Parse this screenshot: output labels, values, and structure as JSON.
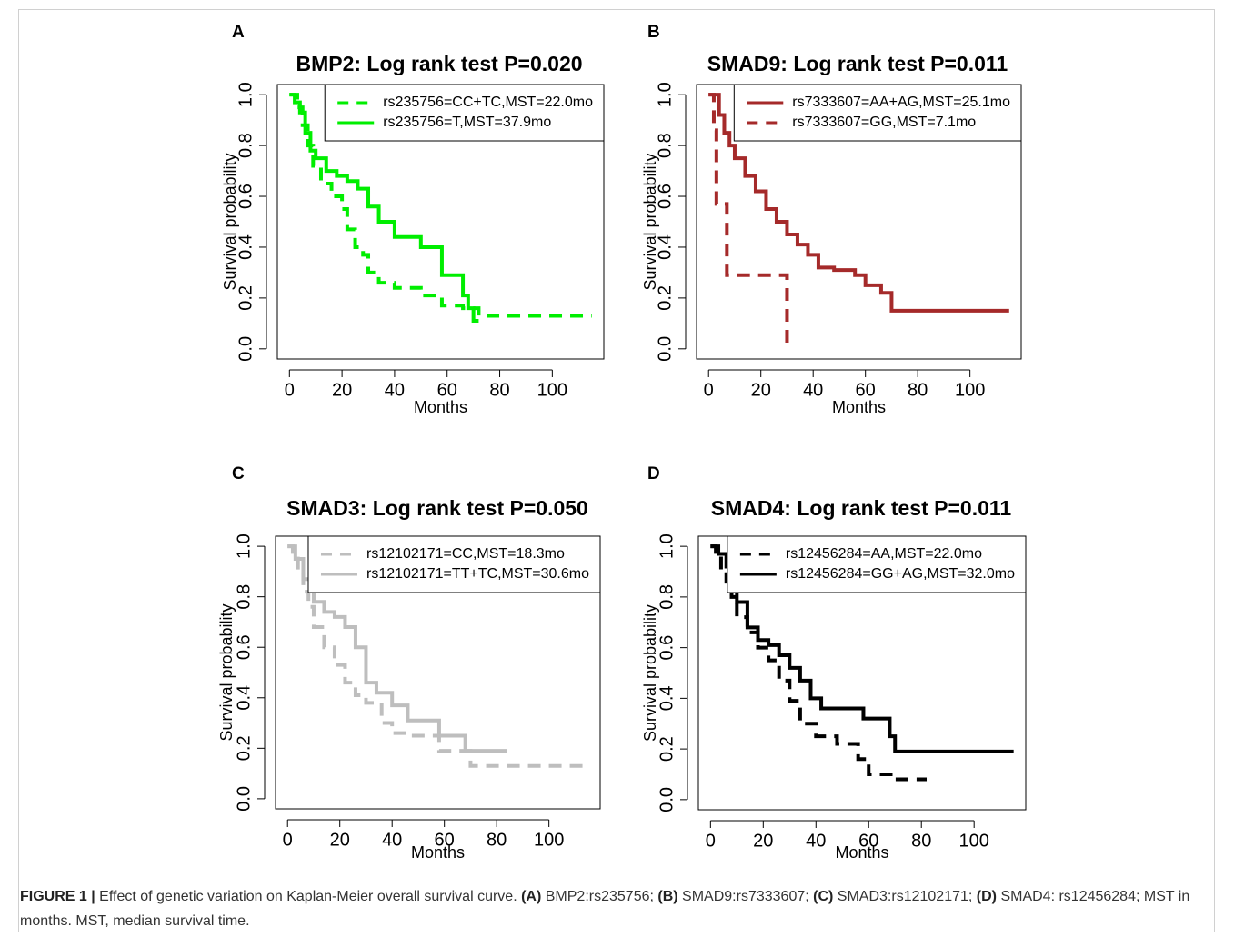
{
  "chart_data": [
    {
      "type": "step",
      "panel": "A",
      "title": "BMP2: Log rank test P=0.020",
      "xlabel": "Months",
      "ylabel": "Survival probability",
      "xlim": [
        -4.6,
        119.6
      ],
      "ylim": [
        -0.04,
        1.04
      ],
      "xticks": [
        0,
        20,
        40,
        60,
        80,
        100
      ],
      "yticks": [
        {
          "value": 0,
          "label": "0.0"
        },
        0.2,
        0.4,
        0.6,
        0.8,
        {
          "value": 1,
          "label": "1.0"
        }
      ],
      "legend": "top-right",
      "series": [
        {
          "name": "rs235756=CC+TC,MST=22.0mo",
          "color": "#00ee00",
          "dashed": true,
          "x": [
            0,
            3,
            5,
            7,
            9,
            12,
            16,
            20,
            22,
            25,
            28,
            30,
            34,
            40,
            50,
            58,
            66,
            72,
            115
          ],
          "values": [
            1,
            0.95,
            0.88,
            0.8,
            0.72,
            0.65,
            0.6,
            0.55,
            0.47,
            0.4,
            0.37,
            0.3,
            0.26,
            0.24,
            0.21,
            0.17,
            0.16,
            0.13,
            0.13
          ]
        },
        {
          "name": "rs235756=T,MST=37.9mo",
          "color": "#00ee00",
          "dashed": false,
          "x": [
            0,
            2,
            4,
            6,
            8,
            10,
            14,
            18,
            22,
            26,
            30,
            34,
            40,
            50,
            58,
            66,
            68,
            70,
            72
          ],
          "values": [
            1,
            0.97,
            0.93,
            0.85,
            0.78,
            0.75,
            0.7,
            0.68,
            0.66,
            0.63,
            0.56,
            0.5,
            0.44,
            0.4,
            0.29,
            0.21,
            0.16,
            0.11,
            0.11
          ]
        }
      ]
    },
    {
      "type": "step",
      "panel": "B",
      "title": "SMAD9: Log rank test P=0.011",
      "xlabel": "Months",
      "ylabel": "Survival probability",
      "xlim": [
        -4.6,
        119.6
      ],
      "ylim": [
        -0.04,
        1.04
      ],
      "xticks": [
        0,
        20,
        40,
        60,
        80,
        100
      ],
      "yticks": [
        {
          "value": 0,
          "label": "0.0"
        },
        0.2,
        0.4,
        0.6,
        0.8,
        {
          "value": 1,
          "label": "1.0"
        }
      ],
      "legend": "top-right",
      "series": [
        {
          "name": "rs7333607=AA+AG,MST=25.1mo",
          "color": "#a52a2a",
          "dashed": false,
          "x": [
            0,
            4,
            6,
            8,
            10,
            14,
            18,
            22,
            26,
            30,
            34,
            38,
            42,
            48,
            56,
            60,
            66,
            70,
            115
          ],
          "values": [
            1,
            0.92,
            0.85,
            0.8,
            0.75,
            0.68,
            0.62,
            0.55,
            0.5,
            0.45,
            0.41,
            0.37,
            0.32,
            0.31,
            0.29,
            0.25,
            0.22,
            0.15,
            0.15
          ]
        },
        {
          "name": "rs7333607=GG,MST=7.1mo",
          "color": "#a52a2a",
          "dashed": true,
          "x": [
            0,
            2,
            3,
            7,
            30
          ],
          "values": [
            1,
            0.86,
            0.57,
            0.29,
            0
          ]
        }
      ]
    },
    {
      "type": "step",
      "panel": "C",
      "title": "SMAD3: Log rank test P=0.050",
      "xlabel": "Months",
      "ylabel": "Survival probability",
      "xlim": [
        -4.6,
        119.6
      ],
      "ylim": [
        -0.04,
        1.04
      ],
      "xticks": [
        0,
        20,
        40,
        60,
        80,
        100
      ],
      "yticks": [
        {
          "value": 0,
          "label": "0.0"
        },
        0.2,
        0.4,
        0.6,
        0.8,
        {
          "value": 1,
          "label": "1.0"
        }
      ],
      "legend": "top-right",
      "series": [
        {
          "name": "rs12102171=CC,MST=18.3mo",
          "color": "#bebebe",
          "dashed": true,
          "x": [
            0,
            2,
            4,
            6,
            8,
            10,
            14,
            18,
            22,
            26,
            30,
            36,
            40,
            46,
            58,
            70,
            115
          ],
          "values": [
            1,
            0.96,
            0.9,
            0.82,
            0.76,
            0.68,
            0.6,
            0.53,
            0.46,
            0.41,
            0.38,
            0.3,
            0.26,
            0.25,
            0.19,
            0.13,
            0.13
          ]
        },
        {
          "name": "rs12102171=TT+TC,MST=30.6mo",
          "color": "#bebebe",
          "dashed": false,
          "x": [
            0,
            3,
            6,
            10,
            14,
            18,
            22,
            26,
            30,
            34,
            40,
            46,
            58,
            68,
            84
          ],
          "values": [
            1,
            0.95,
            0.87,
            0.78,
            0.74,
            0.72,
            0.68,
            0.6,
            0.46,
            0.42,
            0.37,
            0.31,
            0.25,
            0.19,
            0.19
          ]
        }
      ]
    },
    {
      "type": "step",
      "panel": "D",
      "title": "SMAD4: Log rank test P=0.011",
      "xlabel": "Months",
      "ylabel": "Survival probability",
      "xlim": [
        -4.6,
        119.6
      ],
      "ylim": [
        -0.04,
        1.04
      ],
      "xticks": [
        0,
        20,
        40,
        60,
        80,
        100
      ],
      "yticks": [
        {
          "value": 0,
          "label": "0.0"
        },
        0.2,
        0.4,
        0.6,
        0.8,
        {
          "value": 1,
          "label": "1.0"
        }
      ],
      "legend": "top-right",
      "series": [
        {
          "name": "rs12456284=AA,MST=22.0mo",
          "color": "#000000",
          "dashed": true,
          "x": [
            0,
            2,
            4,
            6,
            8,
            10,
            14,
            18,
            22,
            26,
            30,
            34,
            40,
            48,
            56,
            60,
            70,
            82
          ],
          "values": [
            1,
            0.97,
            0.9,
            0.86,
            0.8,
            0.72,
            0.66,
            0.6,
            0.55,
            0.47,
            0.39,
            0.3,
            0.25,
            0.22,
            0.16,
            0.1,
            0.08,
            0.08
          ]
        },
        {
          "name": "rs12456284=GG+AG,MST=32.0mo",
          "color": "#000000",
          "dashed": false,
          "x": [
            0,
            3,
            6,
            8,
            10,
            14,
            18,
            22,
            26,
            30,
            34,
            38,
            42,
            58,
            68,
            70,
            115
          ],
          "values": [
            1,
            0.97,
            0.92,
            0.86,
            0.78,
            0.68,
            0.63,
            0.61,
            0.57,
            0.52,
            0.47,
            0.4,
            0.36,
            0.32,
            0.25,
            0.19,
            0.19
          ]
        }
      ]
    }
  ],
  "caption": [
    "FIGURE 1 |",
    " Effect of genetic variation on Kaplan-Meier overall survival curve. ",
    "(A)",
    " BMP2:rs235756; ",
    "(B)",
    " SMAD9:rs7333607; ",
    "(C)",
    " SMAD3:rs12102171; ",
    "(D)",
    " SMAD4: rs12456284; MST in months. MST, median survival time."
  ]
}
